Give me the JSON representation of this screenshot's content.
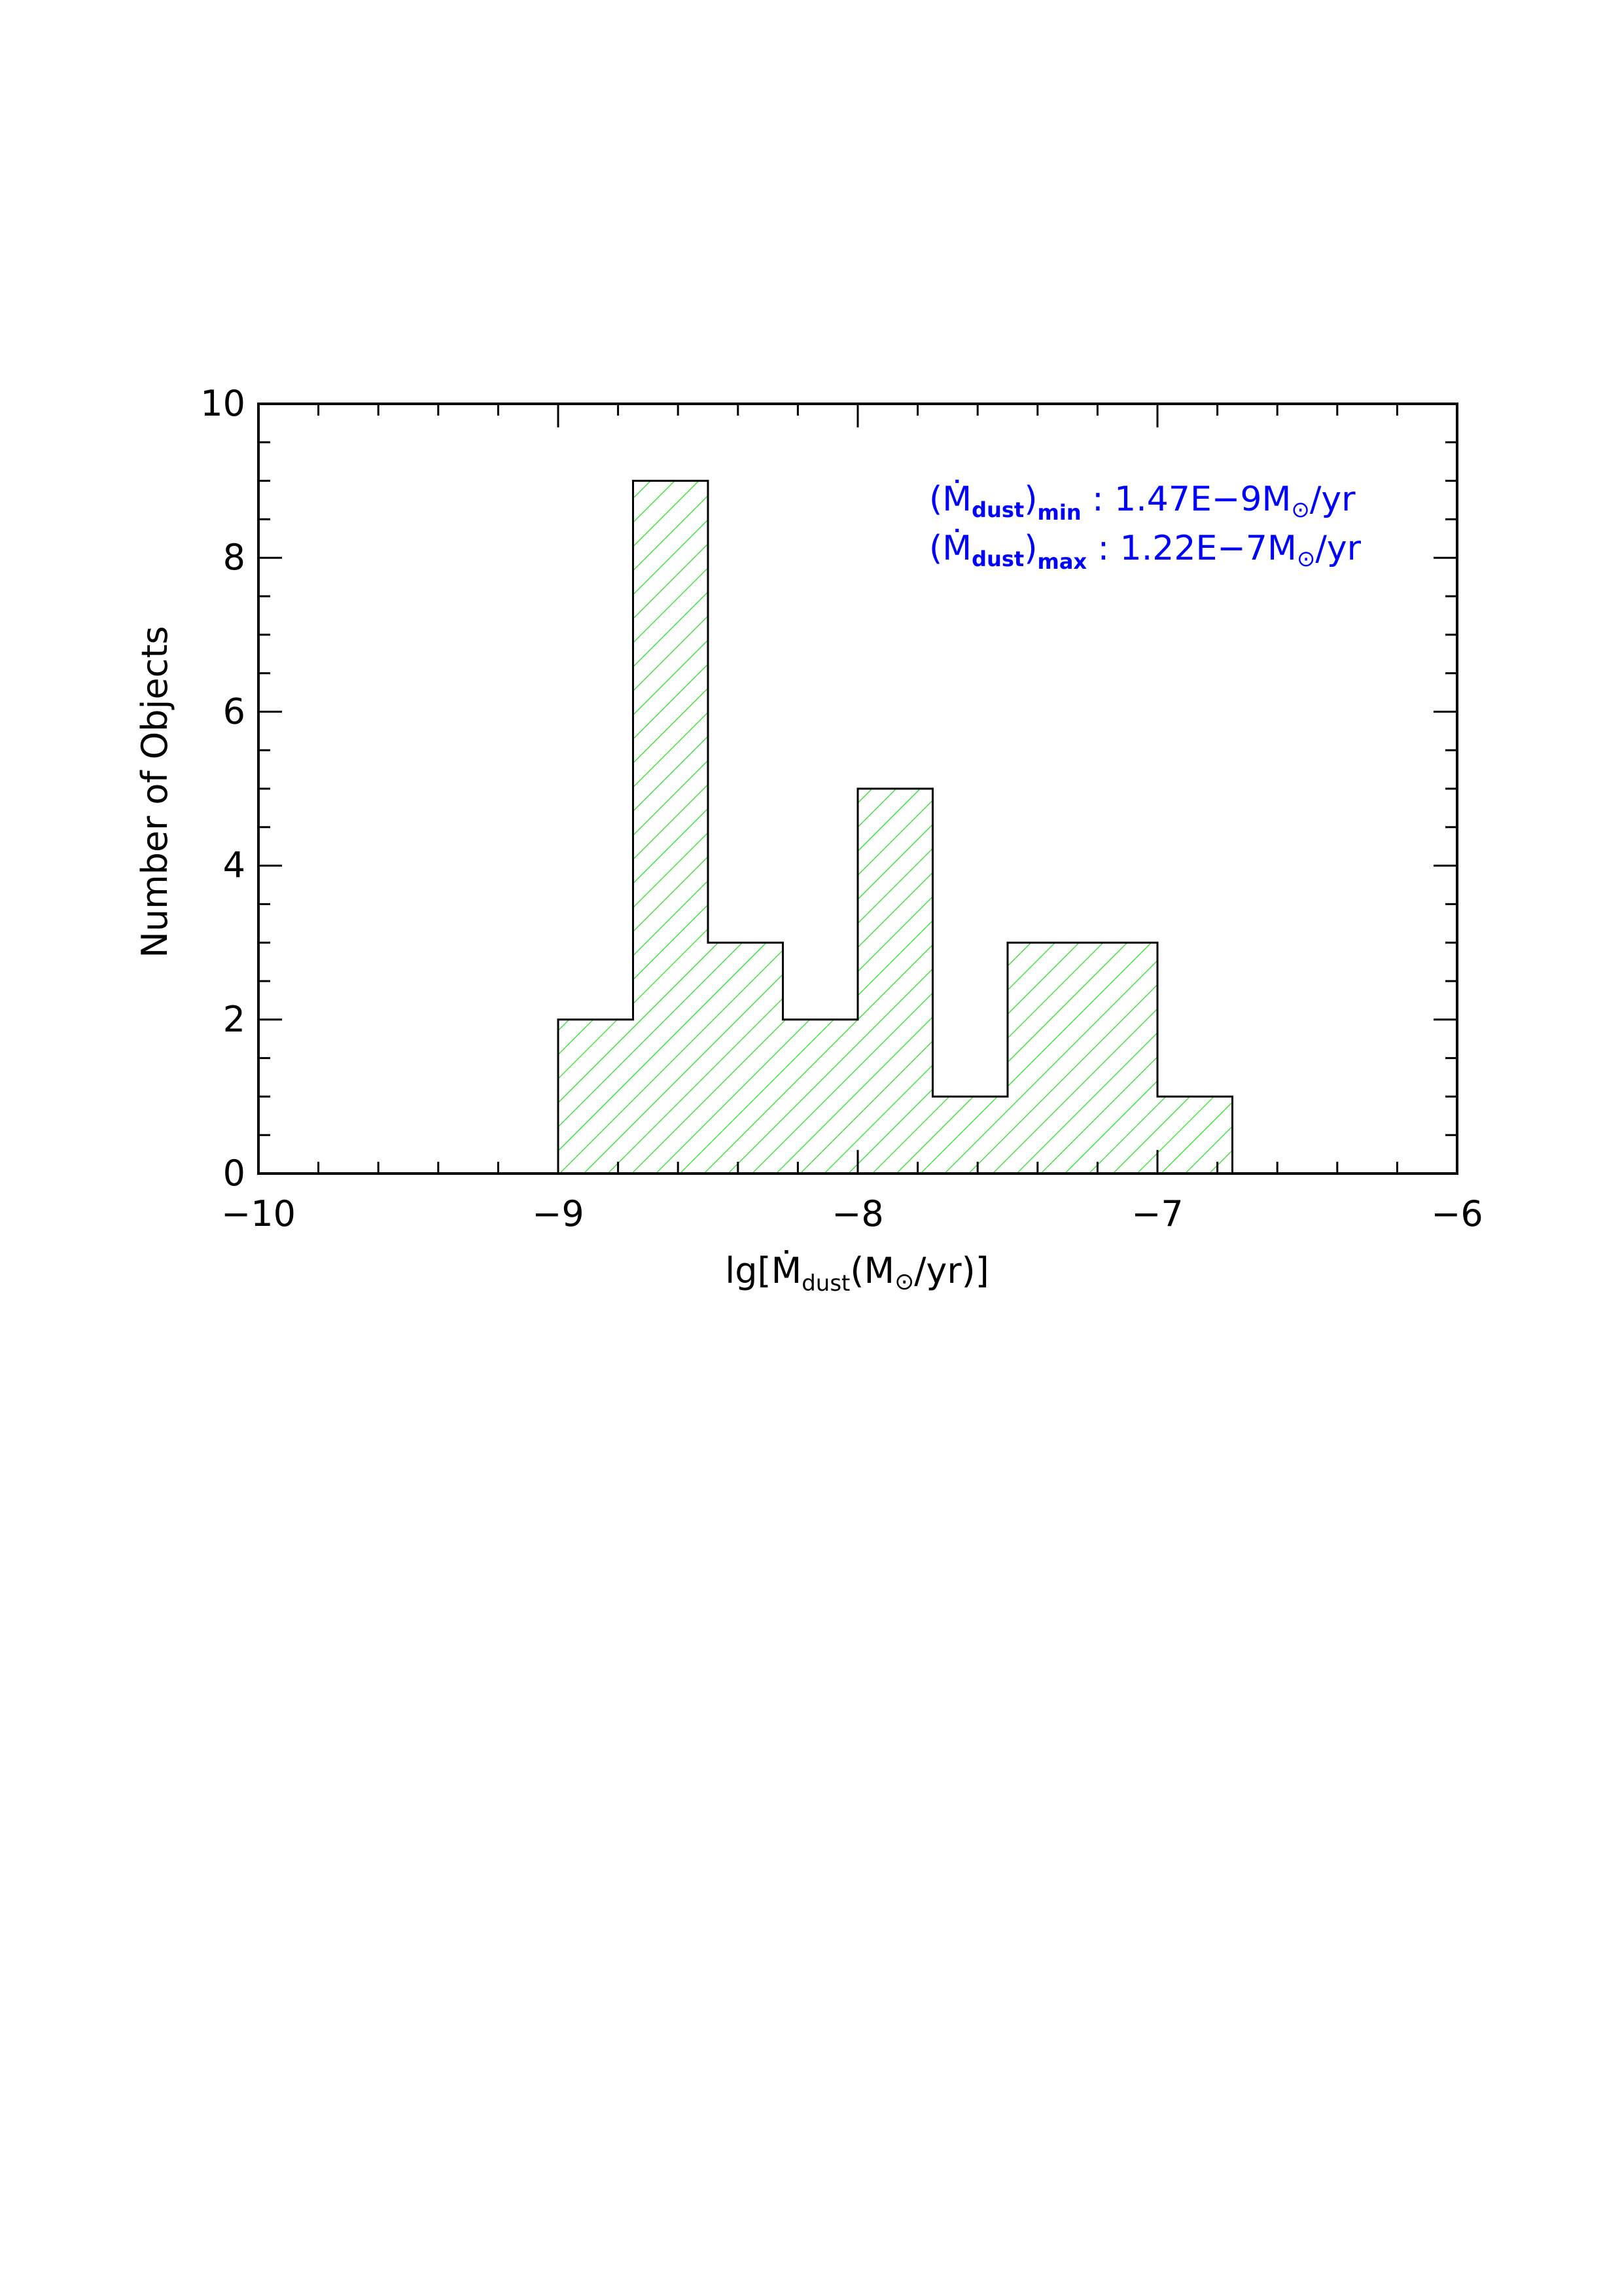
{
  "chart_data": {
    "type": "bar",
    "histogram": true,
    "bin_width": 0.25,
    "bins": [
      {
        "x0": -9.0,
        "x1": -8.75,
        "count": 2
      },
      {
        "x0": -8.75,
        "x1": -8.5,
        "count": 9
      },
      {
        "x0": -8.5,
        "x1": -8.25,
        "count": 3
      },
      {
        "x0": -8.25,
        "x1": -8.0,
        "count": 2
      },
      {
        "x0": -8.0,
        "x1": -7.75,
        "count": 5
      },
      {
        "x0": -7.75,
        "x1": -7.5,
        "count": 1
      },
      {
        "x0": -7.5,
        "x1": -7.25,
        "count": 3
      },
      {
        "x0": -7.25,
        "x1": -7.0,
        "count": 3
      },
      {
        "x0": -7.0,
        "x1": -6.75,
        "count": 1
      }
    ],
    "xlim": [
      -10,
      -6
    ],
    "ylim": [
      0,
      10
    ],
    "xticks": [
      -10,
      -9,
      -8,
      -7,
      -6
    ],
    "xtick_labels": [
      "−10",
      "−9",
      "−8",
      "−7",
      "−6"
    ],
    "yticks": [
      0,
      2,
      4,
      6,
      8,
      10
    ],
    "ytick_labels": [
      "0",
      "2",
      "4",
      "6",
      "8",
      "10"
    ],
    "x_minor_step": 0.2,
    "y_minor_step": 0.5,
    "xlabel": {
      "pre": "lg[",
      "main": "Ṁ",
      "sub": "dust",
      "post": "(M",
      "sun": "⊙",
      "end": "/yr)]"
    },
    "ylabel": "Number of Objects",
    "annotations": [
      {
        "open": "(",
        "main": "Ṁ",
        "sub": "dust",
        "close": ")",
        "sub2": "min",
        "text": " : 1.47E−9M",
        "sun": "⊙",
        "unit": "/yr"
      },
      {
        "open": "(",
        "main": "Ṁ",
        "sub": "dust",
        "close": ")",
        "sub2": "max",
        "text": " : 1.22E−7M",
        "sun": "⊙",
        "unit": "/yr"
      }
    ],
    "grid": false,
    "colors": {
      "hatch": "#22dd22",
      "outline": "#000000",
      "annotation": "#0000ff",
      "axes": "#000000"
    }
  }
}
